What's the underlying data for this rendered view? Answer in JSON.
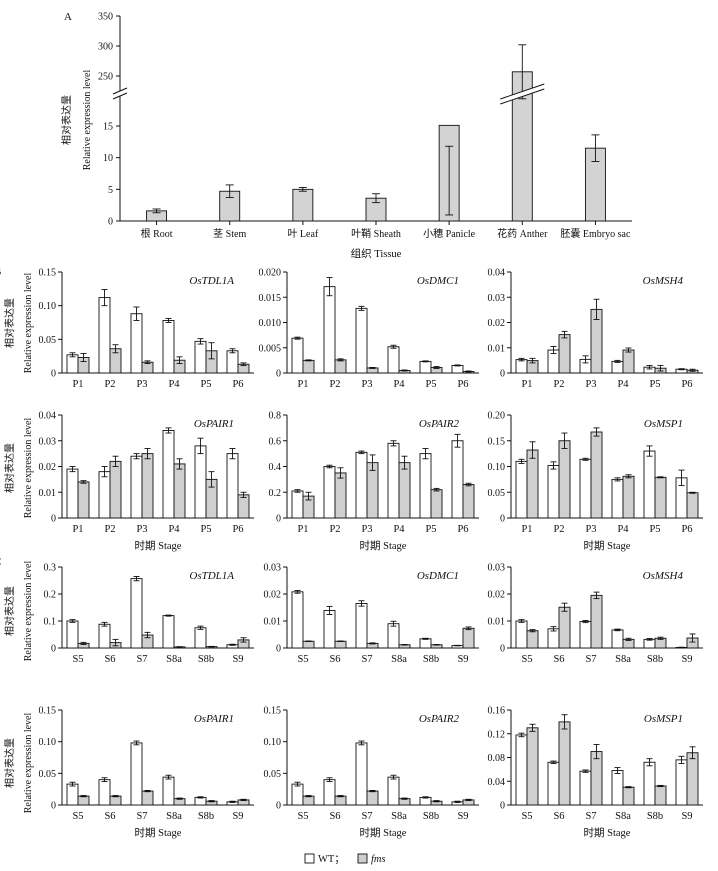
{
  "figure": {
    "panel_labels": [
      "A",
      "B",
      "C"
    ],
    "ylabel_zh": "相对表达量",
    "ylabel_en": "Relative expression level",
    "stage_label": "时期 Stage",
    "legend": {
      "wt": "WT；",
      "fms": "fms"
    }
  },
  "chart_data": [
    {
      "id": "A",
      "type": "bar",
      "title": "",
      "xlabel": "组织 Tissue",
      "ylabel": "相对表达量 Relative expression level",
      "categories": [
        "根 Root",
        "茎 Stem",
        "叶 Leaf",
        "叶鞘 Sheath",
        "小穗 Panicle",
        "花药 Anther",
        "胚囊 Embryo sac"
      ],
      "values": [
        1.6,
        4.7,
        5.0,
        3.6,
        15.1,
        257,
        11.5
      ],
      "errors": [
        0.3,
        1.0,
        0.3,
        0.7,
        3.3,
        45,
        2.1
      ],
      "yaxis_break": true,
      "ylim_lower": [
        0,
        18
      ],
      "ylim_upper": [
        230,
        350
      ],
      "yticks_lower": [
        0,
        5,
        10,
        15
      ],
      "yticks_upper": [
        250,
        300,
        350
      ]
    },
    {
      "id": "B1",
      "type": "bar",
      "title": "OsTDL1A",
      "categories": [
        "P1",
        "P2",
        "P3",
        "P4",
        "P5",
        "P6"
      ],
      "series": [
        {
          "name": "WT",
          "values": [
            0.027,
            0.112,
            0.088,
            0.078,
            0.047,
            0.033
          ],
          "errors": [
            0.003,
            0.012,
            0.01,
            0.003,
            0.004,
            0.003
          ]
        },
        {
          "name": "fms",
          "values": [
            0.023,
            0.036,
            0.016,
            0.019,
            0.033,
            0.013
          ],
          "errors": [
            0.006,
            0.006,
            0.002,
            0.005,
            0.012,
            0.002
          ]
        }
      ],
      "ylim": [
        0,
        0.15
      ],
      "yticks": [
        "0",
        "0.05",
        "0.10",
        "0.15"
      ],
      "xlabel": ""
    },
    {
      "id": "B2",
      "type": "bar",
      "title": "OsDMC1",
      "categories": [
        "P1",
        "P2",
        "P3",
        "P4",
        "P5",
        "P6"
      ],
      "series": [
        {
          "name": "WT",
          "values": [
            0.0069,
            0.0171,
            0.0128,
            0.0052,
            0.0023,
            0.0015
          ],
          "errors": [
            0.0002,
            0.0018,
            0.0004,
            0.0003,
            0.0001,
            0.0001
          ]
        },
        {
          "name": "fms",
          "values": [
            0.0025,
            0.0026,
            0.001,
            0.0005,
            0.0011,
            0.0003
          ],
          "errors": [
            0.0001,
            0.0002,
            0.0001,
            0.0001,
            0.0002,
            0.0001
          ]
        }
      ],
      "ylim": [
        0,
        0.02
      ],
      "yticks": [
        "0",
        "0.005",
        "0.010",
        "0.015",
        "0.020"
      ],
      "xlabel": ""
    },
    {
      "id": "B3",
      "type": "bar",
      "title": "OsMSH4",
      "categories": [
        "P1",
        "P2",
        "P3",
        "P4",
        "P5",
        "P6"
      ],
      "series": [
        {
          "name": "WT",
          "values": [
            0.0053,
            0.0091,
            0.0054,
            0.0046,
            0.0023,
            0.0015
          ],
          "errors": [
            0.0005,
            0.0014,
            0.0014,
            0.0004,
            0.0007,
            0.0002
          ]
        },
        {
          "name": "fms",
          "values": [
            0.0049,
            0.0152,
            0.0252,
            0.0091,
            0.0019,
            0.0011
          ],
          "errors": [
            0.0009,
            0.0013,
            0.004,
            0.0008,
            0.0011,
            0.0004
          ]
        }
      ],
      "ylim": [
        0,
        0.04
      ],
      "yticks": [
        "0",
        "0.01",
        "0.02",
        "0.03",
        "0.04"
      ],
      "xlabel": ""
    },
    {
      "id": "B4",
      "type": "bar",
      "title": "OsPAIR1",
      "categories": [
        "P1",
        "P2",
        "P3",
        "P4",
        "P5",
        "P6"
      ],
      "series": [
        {
          "name": "WT",
          "values": [
            0.019,
            0.018,
            0.024,
            0.034,
            0.028,
            0.025
          ],
          "errors": [
            0.001,
            0.002,
            0.001,
            0.001,
            0.003,
            0.002
          ]
        },
        {
          "name": "fms",
          "values": [
            0.014,
            0.022,
            0.025,
            0.021,
            0.015,
            0.009
          ],
          "errors": [
            0.0005,
            0.002,
            0.002,
            0.002,
            0.003,
            0.001
          ]
        }
      ],
      "ylim": [
        0,
        0.04
      ],
      "yticks": [
        "0",
        "0.01",
        "0.02",
        "0.03",
        "0.04"
      ],
      "xlabel": "时期 Stage"
    },
    {
      "id": "B5",
      "type": "bar",
      "title": "OsPAIR2",
      "categories": [
        "P1",
        "P2",
        "P3",
        "P4",
        "P5",
        "P6"
      ],
      "series": [
        {
          "name": "WT",
          "values": [
            0.21,
            0.4,
            0.51,
            0.58,
            0.5,
            0.6
          ],
          "errors": [
            0.01,
            0.01,
            0.01,
            0.02,
            0.04,
            0.05
          ]
        },
        {
          "name": "fms",
          "values": [
            0.17,
            0.35,
            0.43,
            0.43,
            0.22,
            0.26
          ],
          "errors": [
            0.03,
            0.04,
            0.06,
            0.05,
            0.01,
            0.01
          ]
        }
      ],
      "ylim": [
        0,
        0.8
      ],
      "yticks": [
        "0",
        "0.2",
        "0.4",
        "0.6",
        "0.8"
      ],
      "xlabel": "时期 Stage"
    },
    {
      "id": "B6",
      "type": "bar",
      "title": "OsMSP1",
      "categories": [
        "P1",
        "P2",
        "P3",
        "P4",
        "P5",
        "P6"
      ],
      "series": [
        {
          "name": "WT",
          "values": [
            0.11,
            0.102,
            0.114,
            0.075,
            0.13,
            0.078
          ],
          "errors": [
            0.004,
            0.007,
            0.002,
            0.003,
            0.01,
            0.015
          ]
        },
        {
          "name": "fms",
          "values": [
            0.132,
            0.15,
            0.167,
            0.081,
            0.079,
            0.049
          ],
          "errors": [
            0.016,
            0.015,
            0.008,
            0.003,
            0.001,
            0.001
          ]
        }
      ],
      "ylim": [
        0,
        0.2
      ],
      "yticks": [
        "0",
        "0.05",
        "0.10",
        "0.15",
        "0.20"
      ],
      "xlabel": "时期 Stage"
    },
    {
      "id": "C1",
      "type": "bar",
      "title": "OsTDL1A",
      "categories": [
        "S5",
        "S6",
        "S7",
        "S8a",
        "S8b",
        "S9"
      ],
      "series": [
        {
          "name": "WT",
          "values": [
            0.1,
            0.088,
            0.257,
            0.12,
            0.075,
            0.012
          ],
          "errors": [
            0.005,
            0.007,
            0.008,
            0.002,
            0.006,
            0.002
          ]
        },
        {
          "name": "fms",
          "values": [
            0.017,
            0.02,
            0.048,
            0.004,
            0.005,
            0.03
          ],
          "errors": [
            0.004,
            0.012,
            0.01,
            0.001,
            0.001,
            0.008
          ]
        }
      ],
      "ylim": [
        0,
        0.3
      ],
      "yticks": [
        "0",
        "0.1",
        "0.2",
        "0.3"
      ],
      "xlabel": ""
    },
    {
      "id": "C2",
      "type": "bar",
      "title": "OsDMC1",
      "categories": [
        "S5",
        "S6",
        "S7",
        "S8a",
        "S8b",
        "S9"
      ],
      "series": [
        {
          "name": "WT",
          "values": [
            0.0208,
            0.0139,
            0.0165,
            0.009,
            0.0034,
            0.0009
          ],
          "errors": [
            0.0005,
            0.0015,
            0.001,
            0.0009,
            0.0002,
            0.0001
          ]
        },
        {
          "name": "fms",
          "values": [
            0.0025,
            0.0025,
            0.0017,
            0.0012,
            0.0012,
            0.0073
          ],
          "errors": [
            0.0001,
            0.0001,
            0.0002,
            0.0001,
            0.0001,
            0.0005
          ]
        }
      ],
      "ylim": [
        0,
        0.03
      ],
      "yticks": [
        "0",
        "0.01",
        "0.02",
        "0.03"
      ],
      "xlabel": ""
    },
    {
      "id": "C3",
      "type": "bar",
      "title": "OsMSH4",
      "categories": [
        "S5",
        "S6",
        "S7",
        "S8a",
        "S8b",
        "S9"
      ],
      "series": [
        {
          "name": "WT",
          "values": [
            0.01,
            0.0071,
            0.0098,
            0.0067,
            0.0032,
            0.0002
          ],
          "errors": [
            0.0005,
            0.0008,
            0.0004,
            0.0003,
            0.0003,
            0.0001
          ]
        },
        {
          "name": "fms",
          "values": [
            0.0064,
            0.0151,
            0.0195,
            0.0032,
            0.0036,
            0.0037
          ],
          "errors": [
            0.0004,
            0.0015,
            0.0012,
            0.0004,
            0.0004,
            0.0015
          ]
        }
      ],
      "ylim": [
        0,
        0.03
      ],
      "yticks": [
        "0",
        "0.01",
        "0.02",
        "0.03"
      ],
      "xlabel": ""
    },
    {
      "id": "C4",
      "type": "bar",
      "title": "OsPAIR1",
      "categories": [
        "S5",
        "S6",
        "S7",
        "S8a",
        "S8b",
        "S9"
      ],
      "series": [
        {
          "name": "WT",
          "values": [
            0.033,
            0.04,
            0.098,
            0.044,
            0.012,
            0.005
          ],
          "errors": [
            0.003,
            0.003,
            0.003,
            0.003,
            0.001,
            0.001
          ]
        },
        {
          "name": "fms",
          "values": [
            0.014,
            0.014,
            0.022,
            0.01,
            0.006,
            0.008
          ],
          "errors": [
            0.001,
            0.001,
            0.001,
            0.001,
            0.001,
            0.001
          ]
        }
      ],
      "ylim": [
        0,
        0.15
      ],
      "yticks": [
        "0",
        "0.05",
        "0.10",
        "0.15"
      ],
      "xlabel": "时期 Stage"
    },
    {
      "id": "C5",
      "type": "bar",
      "title": "OsPAIR2",
      "categories": [
        "S5",
        "S6",
        "S7",
        "S8a",
        "S8b",
        "S9"
      ],
      "series": [
        {
          "name": "WT",
          "values": [
            0.033,
            0.04,
            0.098,
            0.044,
            0.012,
            0.005
          ],
          "errors": [
            0.003,
            0.003,
            0.003,
            0.003,
            0.001,
            0.001
          ]
        },
        {
          "name": "fms",
          "values": [
            0.014,
            0.014,
            0.022,
            0.01,
            0.006,
            0.008
          ],
          "errors": [
            0.001,
            0.001,
            0.001,
            0.001,
            0.001,
            0.001
          ]
        }
      ],
      "ylim": [
        0,
        0.15
      ],
      "yticks": [
        "0",
        "0.05",
        "0.10",
        "0.15"
      ],
      "xlabel": "时期 Stage"
    },
    {
      "id": "C6",
      "type": "bar",
      "title": "OsMSP1",
      "categories": [
        "S5",
        "S6",
        "S7",
        "S8a",
        "S8b",
        "S9"
      ],
      "series": [
        {
          "name": "WT",
          "values": [
            0.118,
            0.072,
            0.057,
            0.058,
            0.072,
            0.076
          ],
          "errors": [
            0.003,
            0.002,
            0.002,
            0.005,
            0.006,
            0.006
          ]
        },
        {
          "name": "fms",
          "values": [
            0.13,
            0.14,
            0.09,
            0.03,
            0.032,
            0.088
          ],
          "errors": [
            0.006,
            0.012,
            0.012,
            0.001,
            0.001,
            0.01
          ]
        }
      ],
      "ylim": [
        0,
        0.16
      ],
      "yticks": [
        "0",
        "0.04",
        "0.08",
        "0.12",
        "0.16"
      ],
      "xlabel": "时期 Stage"
    }
  ]
}
